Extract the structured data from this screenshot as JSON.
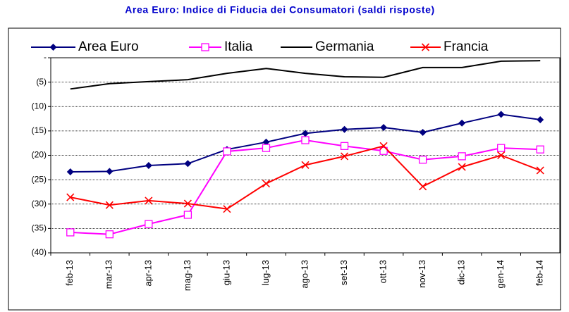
{
  "chart_data": {
    "type": "line",
    "title": "Area Euro: Indice di Fiducia dei Consumatori (saldi risposte)",
    "categories": [
      "feb-13",
      "mar-13",
      "apr-13",
      "mag-13",
      "giu-13",
      "lug-13",
      "ago-13",
      "set-13",
      "ott-13",
      "nov-13",
      "dic-13",
      "gen-14",
      "feb-14"
    ],
    "series": [
      {
        "name": "Area Euro",
        "color": "#000080",
        "marker": "diamond",
        "values": [
          -23.4,
          -23.3,
          -22.1,
          -21.7,
          -18.8,
          -17.3,
          -15.5,
          -14.7,
          -14.3,
          -15.3,
          -13.4,
          -11.6,
          -12.7
        ]
      },
      {
        "name": "Italia",
        "color": "#ff00ff",
        "marker": "square",
        "values": [
          -35.8,
          -36.2,
          -34.1,
          -32.2,
          -19.2,
          -18.5,
          -16.9,
          -18.1,
          -19.1,
          -20.9,
          -20.2,
          -18.5,
          -18.8
        ]
      },
      {
        "name": "Germania",
        "color": "#000000",
        "marker": "none",
        "values": [
          -6.4,
          -5.3,
          -4.9,
          -4.5,
          -3.2,
          -2.2,
          -3.2,
          -3.9,
          -4.0,
          -2.0,
          -2.0,
          -0.7,
          -0.6
        ]
      },
      {
        "name": "Francia",
        "color": "#ff0000",
        "marker": "x",
        "values": [
          -28.6,
          -30.2,
          -29.3,
          -29.9,
          -31.0,
          -25.8,
          -22.0,
          -20.2,
          -18.1,
          -26.4,
          -22.4,
          -20.0,
          -23.1
        ]
      }
    ],
    "ylim": [
      -40,
      0
    ],
    "yticks": [
      {
        "value": 0,
        "label": "-"
      },
      {
        "value": -5,
        "label": "(5)"
      },
      {
        "value": -10,
        "label": "(10)"
      },
      {
        "value": -15,
        "label": "(15)"
      },
      {
        "value": -20,
        "label": "(20)"
      },
      {
        "value": -25,
        "label": "(25)"
      },
      {
        "value": -30,
        "label": "(30)"
      },
      {
        "value": -35,
        "label": "(35)"
      },
      {
        "value": -40,
        "label": "(40)"
      }
    ],
    "grid": true,
    "legend": "top"
  }
}
